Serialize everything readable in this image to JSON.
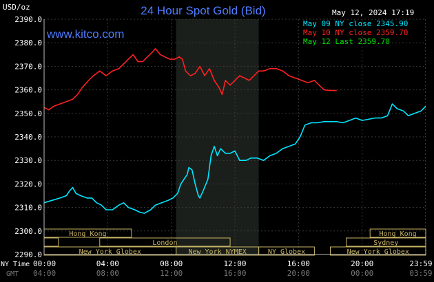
{
  "chart_data": {
    "type": "line",
    "title": "24 Hour Spot Gold (Bid)",
    "ylabel": "USD/oz",
    "watermark": "www.kitco.com",
    "timestamp": "May 12, 2024 17:19",
    "ylim": [
      2290,
      2390
    ],
    "y_ticks": [
      "2390.0",
      "2380.0",
      "2370.0",
      "2360.0",
      "2350.0",
      "2340.0",
      "2330.0",
      "2320.0",
      "2310.0",
      "2300.0",
      "2290.0"
    ],
    "x_row1_label": "NY Time",
    "x_row2_label": "GMT",
    "x_ticks_ny": [
      "00:00",
      "04:00",
      "08:00",
      "12:00",
      "16:00",
      "20:00",
      "23:59"
    ],
    "x_ticks_gmt": [
      "04:00",
      "08:00",
      "12:00",
      "16:00",
      "20:00",
      "00:00",
      "03:59"
    ],
    "x_tick_hours": [
      0,
      4,
      8,
      12,
      16,
      20,
      23.98
    ],
    "xlim_hours": [
      0,
      24
    ],
    "highlight_hours": [
      8.3,
      13.5
    ],
    "grid": true,
    "legend_placement": "top-right",
    "legend": [
      {
        "text": "May 09 NY close 2345.90",
        "color": "#00e5ff"
      },
      {
        "text": "May 10 NY close 2359.70",
        "color": "#ff2020"
      },
      {
        "text": "May 12 Last 2359.70",
        "color": "#00e000"
      }
    ],
    "series": [
      {
        "name": "May 09 NY close 2345.90",
        "color": "#00e5ff",
        "points": [
          [
            0,
            2312
          ],
          [
            0.5,
            2313
          ],
          [
            1,
            2314
          ],
          [
            1.4,
            2315
          ],
          [
            1.6,
            2317
          ],
          [
            1.8,
            2318.5
          ],
          [
            2.0,
            2316
          ],
          [
            2.3,
            2315
          ],
          [
            2.7,
            2314
          ],
          [
            3.0,
            2314
          ],
          [
            3.3,
            2312
          ],
          [
            3.6,
            2311
          ],
          [
            3.9,
            2309
          ],
          [
            4.3,
            2309
          ],
          [
            4.7,
            2311
          ],
          [
            5.0,
            2312
          ],
          [
            5.3,
            2310
          ],
          [
            5.7,
            2309
          ],
          [
            6.0,
            2308
          ],
          [
            6.3,
            2307.5
          ],
          [
            6.7,
            2309
          ],
          [
            7.0,
            2311
          ],
          [
            7.4,
            2312
          ],
          [
            7.8,
            2313
          ],
          [
            8.1,
            2314
          ],
          [
            8.4,
            2316
          ],
          [
            8.6,
            2320
          ],
          [
            8.8,
            2322
          ],
          [
            9.0,
            2324
          ],
          [
            9.1,
            2327
          ],
          [
            9.3,
            2326
          ],
          [
            9.5,
            2320
          ],
          [
            9.7,
            2315
          ],
          [
            9.8,
            2314
          ],
          [
            10.0,
            2317
          ],
          [
            10.3,
            2322
          ],
          [
            10.5,
            2332
          ],
          [
            10.7,
            2336
          ],
          [
            10.9,
            2332
          ],
          [
            11.1,
            2335
          ],
          [
            11.4,
            2333
          ],
          [
            11.7,
            2333
          ],
          [
            12.0,
            2334
          ],
          [
            12.3,
            2330
          ],
          [
            12.7,
            2330
          ],
          [
            13.0,
            2331
          ],
          [
            13.4,
            2331
          ],
          [
            13.8,
            2330
          ],
          [
            14.2,
            2332
          ],
          [
            14.6,
            2333
          ],
          [
            15.0,
            2335
          ],
          [
            15.4,
            2336
          ],
          [
            15.8,
            2337
          ],
          [
            16.1,
            2340
          ],
          [
            16.4,
            2345
          ],
          [
            16.8,
            2346
          ],
          [
            17.2,
            2346
          ],
          [
            17.6,
            2346.5
          ],
          [
            18.0,
            2346.5
          ],
          [
            18.4,
            2346.5
          ],
          [
            18.8,
            2346
          ],
          [
            19.2,
            2347
          ],
          [
            19.6,
            2348
          ],
          [
            20.0,
            2347
          ],
          [
            20.4,
            2347.5
          ],
          [
            20.8,
            2348
          ],
          [
            21.2,
            2348
          ],
          [
            21.6,
            2349
          ],
          [
            21.9,
            2354
          ],
          [
            22.2,
            2352
          ],
          [
            22.6,
            2351
          ],
          [
            22.9,
            2349
          ],
          [
            23.3,
            2350
          ],
          [
            23.7,
            2351
          ],
          [
            24.0,
            2353
          ]
        ]
      },
      {
        "name": "May 10 NY close 2359.70",
        "color": "#ff2020",
        "points": [
          [
            0,
            2352.5
          ],
          [
            0.3,
            2351.5
          ],
          [
            0.6,
            2353
          ],
          [
            1.0,
            2354
          ],
          [
            1.4,
            2355
          ],
          [
            1.8,
            2356
          ],
          [
            2.1,
            2358
          ],
          [
            2.4,
            2361
          ],
          [
            2.8,
            2364
          ],
          [
            3.1,
            2366
          ],
          [
            3.5,
            2368
          ],
          [
            3.9,
            2366
          ],
          [
            4.3,
            2368
          ],
          [
            4.7,
            2369
          ],
          [
            5.0,
            2371
          ],
          [
            5.3,
            2373
          ],
          [
            5.6,
            2375
          ],
          [
            5.9,
            2372
          ],
          [
            6.2,
            2372
          ],
          [
            6.5,
            2374
          ],
          [
            6.8,
            2376
          ],
          [
            7.0,
            2377.5
          ],
          [
            7.3,
            2375
          ],
          [
            7.6,
            2374
          ],
          [
            7.9,
            2373
          ],
          [
            8.2,
            2373
          ],
          [
            8.5,
            2374
          ],
          [
            8.7,
            2373
          ],
          [
            8.9,
            2368
          ],
          [
            9.2,
            2366
          ],
          [
            9.5,
            2367
          ],
          [
            9.8,
            2370
          ],
          [
            10.1,
            2366
          ],
          [
            10.4,
            2369
          ],
          [
            10.7,
            2364
          ],
          [
            11.0,
            2361
          ],
          [
            11.2,
            2358
          ],
          [
            11.4,
            2364
          ],
          [
            11.7,
            2362
          ],
          [
            12.0,
            2364
          ],
          [
            12.3,
            2366
          ],
          [
            12.6,
            2365
          ],
          [
            12.9,
            2364
          ],
          [
            13.2,
            2366
          ],
          [
            13.5,
            2368
          ],
          [
            13.8,
            2368
          ],
          [
            14.2,
            2369
          ],
          [
            14.6,
            2369
          ],
          [
            15.0,
            2368
          ],
          [
            15.4,
            2366
          ],
          [
            15.8,
            2365
          ],
          [
            16.2,
            2364
          ],
          [
            16.6,
            2363
          ],
          [
            17.0,
            2364
          ],
          [
            17.3,
            2362
          ],
          [
            17.6,
            2360
          ],
          [
            18.0,
            2359.7
          ],
          [
            18.4,
            2359.7
          ]
        ]
      }
    ],
    "sessions": {
      "row1": [
        {
          "label": "Hong Kong",
          "start": 0,
          "end": 5.5
        },
        {
          "label": "Hong Kong",
          "start": 20.5,
          "end": 24
        }
      ],
      "row2": [
        {
          "label": "",
          "start": 0,
          "end": 0.9
        },
        {
          "label": "London",
          "start": 3.5,
          "end": 11.7
        },
        {
          "label": "Sydney",
          "start": 19.0,
          "end": 24
        }
      ],
      "row3": [
        {
          "label": "New York Globex",
          "start": 0,
          "end": 8.3
        },
        {
          "label": "New York NYMEX",
          "start": 8.3,
          "end": 13.5
        },
        {
          "label": "NY Globex",
          "start": 13.5,
          "end": 17.0
        },
        {
          "label": "New York Globex",
          "start": 18.0,
          "end": 24
        }
      ]
    }
  }
}
